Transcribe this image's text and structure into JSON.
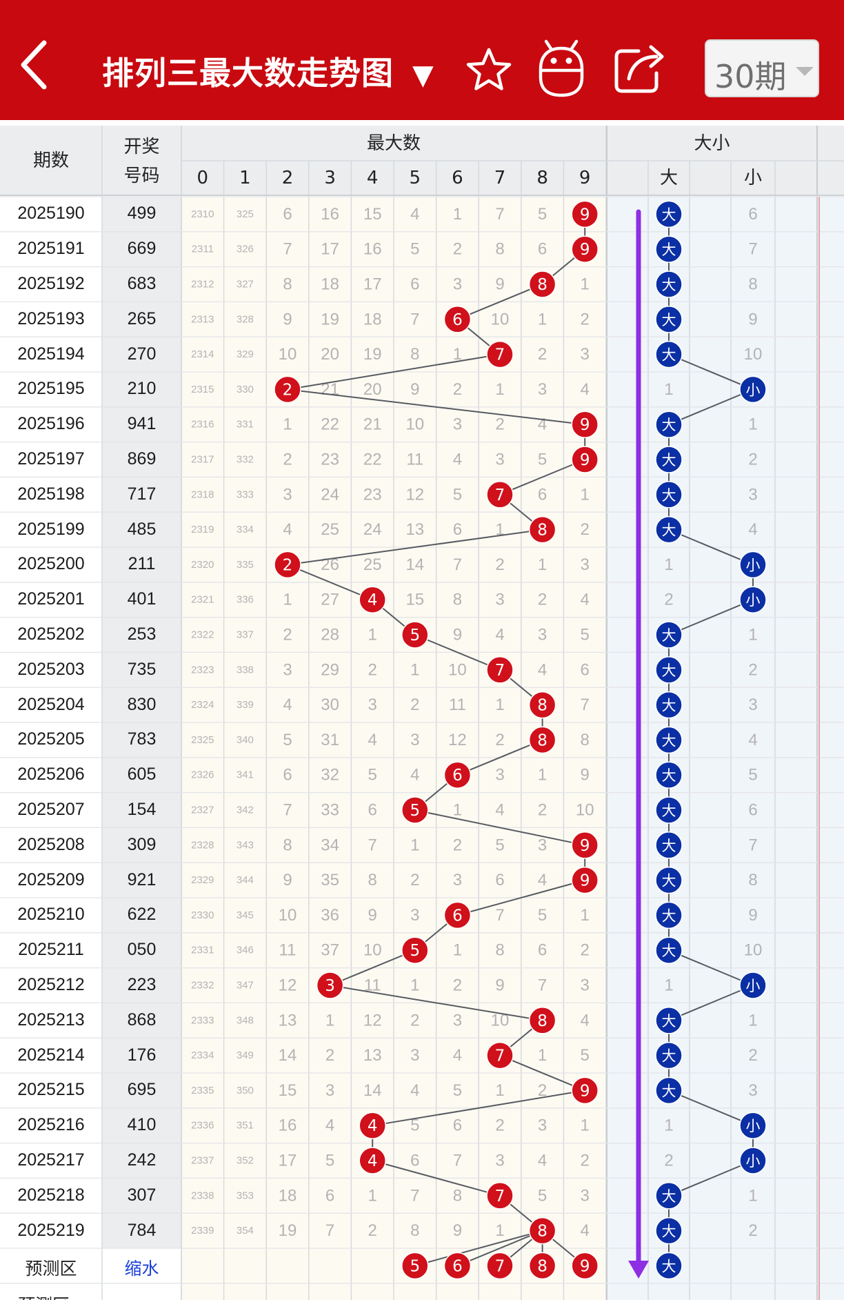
{
  "header": {
    "title": "排列三最大数走势图",
    "title_caret": "▼",
    "period_select": "30期",
    "icons": [
      "back-arrow-icon",
      "favorite-star-icon",
      "robot-icon",
      "share-icon"
    ]
  },
  "table": {
    "col_period": "期数",
    "col_draw_line1": "开奖",
    "col_draw_line2": "号码",
    "group_max": "最大数",
    "group_size": "大小",
    "digit_headers": [
      "0",
      "1",
      "2",
      "3",
      "4",
      "5",
      "6",
      "7",
      "8",
      "9"
    ],
    "size_headers": [
      "大",
      "",
      "小"
    ],
    "ball_big": "大",
    "ball_small": "小",
    "predict_label": "预测区",
    "predict_link": "缩水",
    "predict_balls": [
      "5",
      "6",
      "7",
      "8",
      "9"
    ],
    "predict_size_ball": "大",
    "predict_plus_label": "预测区+",
    "rows": [
      {
        "period": "2025190",
        "draw": "499",
        "miss": [
          "2310",
          "325",
          "6",
          "16",
          "15",
          "4",
          "1",
          "7",
          "5",
          ""
        ],
        "max": 9,
        "size": "大",
        "small_miss": "6"
      },
      {
        "period": "2025191",
        "draw": "669",
        "miss": [
          "2311",
          "326",
          "7",
          "17",
          "16",
          "5",
          "2",
          "8",
          "6",
          ""
        ],
        "max": 9,
        "size": "大",
        "small_miss": "7"
      },
      {
        "period": "2025192",
        "draw": "683",
        "miss": [
          "2312",
          "327",
          "8",
          "18",
          "17",
          "6",
          "3",
          "9",
          "",
          "1"
        ],
        "max": 8,
        "size": "大",
        "small_miss": "8"
      },
      {
        "period": "2025193",
        "draw": "265",
        "miss": [
          "2313",
          "328",
          "9",
          "19",
          "18",
          "7",
          "",
          "10",
          "1",
          "2"
        ],
        "max": 6,
        "size": "大",
        "small_miss": "9"
      },
      {
        "period": "2025194",
        "draw": "270",
        "miss": [
          "2314",
          "329",
          "10",
          "20",
          "19",
          "8",
          "1",
          "",
          "2",
          "3"
        ],
        "max": 7,
        "size": "大",
        "small_miss": "10"
      },
      {
        "period": "2025195",
        "draw": "210",
        "miss": [
          "2315",
          "330",
          "",
          "21",
          "20",
          "9",
          "2",
          "1",
          "3",
          "4"
        ],
        "max": 2,
        "size": "小",
        "big_miss": "1"
      },
      {
        "period": "2025196",
        "draw": "941",
        "miss": [
          "2316",
          "331",
          "1",
          "22",
          "21",
          "10",
          "3",
          "2",
          "4",
          ""
        ],
        "max": 9,
        "size": "大",
        "small_miss": "1"
      },
      {
        "period": "2025197",
        "draw": "869",
        "miss": [
          "2317",
          "332",
          "2",
          "23",
          "22",
          "11",
          "4",
          "3",
          "5",
          ""
        ],
        "max": 9,
        "size": "大",
        "small_miss": "2"
      },
      {
        "period": "2025198",
        "draw": "717",
        "miss": [
          "2318",
          "333",
          "3",
          "24",
          "23",
          "12",
          "5",
          "",
          "6",
          "1"
        ],
        "max": 7,
        "size": "大",
        "small_miss": "3"
      },
      {
        "period": "2025199",
        "draw": "485",
        "miss": [
          "2319",
          "334",
          "4",
          "25",
          "24",
          "13",
          "6",
          "1",
          "",
          "2"
        ],
        "max": 8,
        "size": "大",
        "small_miss": "4"
      },
      {
        "period": "2025200",
        "draw": "211",
        "miss": [
          "2320",
          "335",
          "",
          "26",
          "25",
          "14",
          "7",
          "2",
          "1",
          "3"
        ],
        "max": 2,
        "size": "小",
        "big_miss": "1"
      },
      {
        "period": "2025201",
        "draw": "401",
        "miss": [
          "2321",
          "336",
          "1",
          "27",
          "",
          "15",
          "8",
          "3",
          "2",
          "4"
        ],
        "max": 4,
        "size": "小",
        "big_miss": "2"
      },
      {
        "period": "2025202",
        "draw": "253",
        "miss": [
          "2322",
          "337",
          "2",
          "28",
          "1",
          "",
          "9",
          "4",
          "3",
          "5"
        ],
        "max": 5,
        "size": "大",
        "small_miss": "1"
      },
      {
        "period": "2025203",
        "draw": "735",
        "miss": [
          "2323",
          "338",
          "3",
          "29",
          "2",
          "1",
          "10",
          "",
          "4",
          "6"
        ],
        "max": 7,
        "size": "大",
        "small_miss": "2"
      },
      {
        "period": "2025204",
        "draw": "830",
        "miss": [
          "2324",
          "339",
          "4",
          "30",
          "3",
          "2",
          "11",
          "1",
          "",
          "7"
        ],
        "max": 8,
        "size": "大",
        "small_miss": "3"
      },
      {
        "period": "2025205",
        "draw": "783",
        "miss": [
          "2325",
          "340",
          "5",
          "31",
          "4",
          "3",
          "12",
          "2",
          "",
          "8"
        ],
        "max": 8,
        "size": "大",
        "small_miss": "4"
      },
      {
        "period": "2025206",
        "draw": "605",
        "miss": [
          "2326",
          "341",
          "6",
          "32",
          "5",
          "4",
          "",
          "3",
          "1",
          "9"
        ],
        "max": 6,
        "size": "大",
        "small_miss": "5"
      },
      {
        "period": "2025207",
        "draw": "154",
        "miss": [
          "2327",
          "342",
          "7",
          "33",
          "6",
          "",
          "1",
          "4",
          "2",
          "10"
        ],
        "max": 5,
        "size": "大",
        "small_miss": "6"
      },
      {
        "period": "2025208",
        "draw": "309",
        "miss": [
          "2328",
          "343",
          "8",
          "34",
          "7",
          "1",
          "2",
          "5",
          "3",
          ""
        ],
        "max": 9,
        "size": "大",
        "small_miss": "7"
      },
      {
        "period": "2025209",
        "draw": "921",
        "miss": [
          "2329",
          "344",
          "9",
          "35",
          "8",
          "2",
          "3",
          "6",
          "4",
          ""
        ],
        "max": 9,
        "size": "大",
        "small_miss": "8"
      },
      {
        "period": "2025210",
        "draw": "622",
        "miss": [
          "2330",
          "345",
          "10",
          "36",
          "9",
          "3",
          "",
          "7",
          "5",
          "1"
        ],
        "max": 6,
        "size": "大",
        "small_miss": "9"
      },
      {
        "period": "2025211",
        "draw": "050",
        "miss": [
          "2331",
          "346",
          "11",
          "37",
          "10",
          "",
          "1",
          "8",
          "6",
          "2"
        ],
        "max": 5,
        "size": "大",
        "small_miss": "10"
      },
      {
        "period": "2025212",
        "draw": "223",
        "miss": [
          "2332",
          "347",
          "12",
          "",
          "11",
          "1",
          "2",
          "9",
          "7",
          "3"
        ],
        "max": 3,
        "size": "小",
        "big_miss": "1"
      },
      {
        "period": "2025213",
        "draw": "868",
        "miss": [
          "2333",
          "348",
          "13",
          "1",
          "12",
          "2",
          "3",
          "10",
          "",
          "4"
        ],
        "max": 8,
        "size": "大",
        "small_miss": "1"
      },
      {
        "period": "2025214",
        "draw": "176",
        "miss": [
          "2334",
          "349",
          "14",
          "2",
          "13",
          "3",
          "4",
          "",
          "1",
          "5"
        ],
        "max": 7,
        "size": "大",
        "small_miss": "2"
      },
      {
        "period": "2025215",
        "draw": "695",
        "miss": [
          "2335",
          "350",
          "15",
          "3",
          "14",
          "4",
          "5",
          "1",
          "2",
          ""
        ],
        "max": 9,
        "size": "大",
        "small_miss": "3"
      },
      {
        "period": "2025216",
        "draw": "410",
        "miss": [
          "2336",
          "351",
          "16",
          "4",
          "",
          "5",
          "6",
          "2",
          "3",
          "1"
        ],
        "max": 4,
        "size": "小",
        "big_miss": "1"
      },
      {
        "period": "2025217",
        "draw": "242",
        "miss": [
          "2337",
          "352",
          "17",
          "5",
          "",
          "6",
          "7",
          "3",
          "4",
          "2"
        ],
        "max": 4,
        "size": "小",
        "big_miss": "2"
      },
      {
        "period": "2025218",
        "draw": "307",
        "miss": [
          "2338",
          "353",
          "18",
          "6",
          "1",
          "7",
          "8",
          "",
          "5",
          "3"
        ],
        "max": 7,
        "size": "大",
        "small_miss": "1"
      },
      {
        "period": "2025219",
        "draw": "784",
        "miss": [
          "2339",
          "354",
          "19",
          "7",
          "2",
          "8",
          "9",
          "1",
          "",
          "4"
        ],
        "max": 8,
        "size": "大",
        "small_miss": "2"
      }
    ]
  },
  "colors": {
    "brand_red": "#c8090f",
    "ball_red": "#d0101a",
    "ball_blue": "#0b2fa4",
    "arrow_purple": "#8e2fe3",
    "miss_text": "#b3b3b3",
    "header_bg": "#ebedef",
    "digit_bg": "#fdfaf2",
    "size_bg": "#f0f5fa"
  }
}
